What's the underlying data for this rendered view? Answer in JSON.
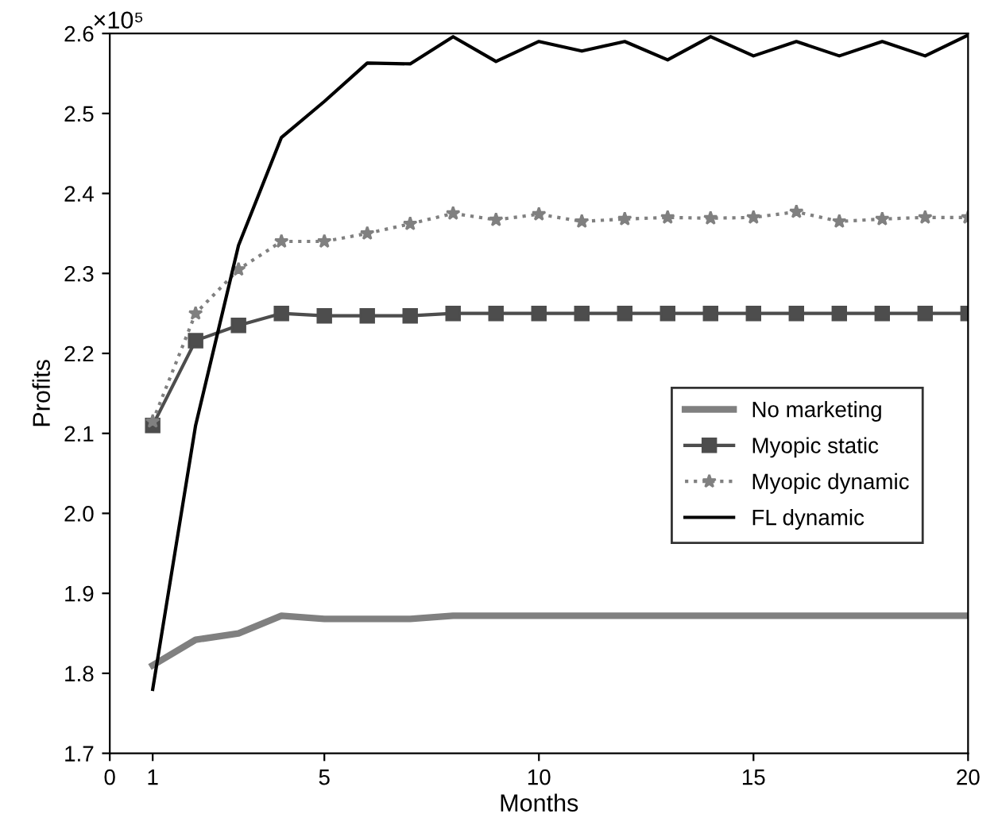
{
  "chart_data": {
    "type": "line",
    "xlabel": "Months",
    "ylabel": "Profits",
    "annotations": [
      "×10⁵"
    ],
    "x": [
      1,
      2,
      3,
      4,
      5,
      6,
      7,
      8,
      9,
      10,
      11,
      12,
      13,
      14,
      15,
      16,
      17,
      18,
      19,
      20
    ],
    "series": [
      {
        "name": "No marketing",
        "color": "#808080",
        "marker": "none",
        "line_style": "solid",
        "values": [
          1.81,
          1.842,
          1.85,
          1.872,
          1.868,
          1.868,
          1.868,
          1.872,
          1.872,
          1.872,
          1.872,
          1.872,
          1.872,
          1.872,
          1.872,
          1.872,
          1.872,
          1.872,
          1.872,
          1.872
        ]
      },
      {
        "name": "Myopic static",
        "color": "#4d4d4d",
        "marker": "square",
        "line_style": "solid",
        "values": [
          2.11,
          2.216,
          2.235,
          2.25,
          2.247,
          2.247,
          2.247,
          2.25,
          2.25,
          2.25,
          2.25,
          2.25,
          2.25,
          2.25,
          2.25,
          2.25,
          2.25,
          2.25,
          2.25,
          2.25
        ]
      },
      {
        "name": "Myopic dynamic",
        "color": "#808080",
        "marker": "star",
        "line_style": "dotted",
        "values": [
          2.115,
          2.25,
          2.305,
          2.34,
          2.34,
          2.35,
          2.362,
          2.375,
          2.367,
          2.374,
          2.365,
          2.368,
          2.37,
          2.369,
          2.37,
          2.377,
          2.365,
          2.368,
          2.37,
          2.37
        ]
      },
      {
        "name": "FL dynamic",
        "color": "#000000",
        "marker": "none",
        "line_style": "solid",
        "values": [
          1.78,
          2.11,
          2.335,
          2.47,
          2.515,
          2.563,
          2.562,
          2.596,
          2.565,
          2.59,
          2.578,
          2.59,
          2.567,
          2.596,
          2.572,
          2.59,
          2.572,
          2.59,
          2.572,
          2.598
        ]
      }
    ],
    "xlim": [
      0,
      20
    ],
    "xticks": [
      0,
      1,
      5,
      10,
      15,
      20
    ],
    "ylim": [
      1.7,
      2.6
    ],
    "yticks": [
      {
        "value": 1.7,
        "label": "1.7"
      },
      {
        "value": 1.8,
        "label": "1.8"
      },
      {
        "value": 1.9,
        "label": "1.9"
      },
      {
        "value": 2.0,
        "label": "2.0"
      },
      {
        "value": 2.1,
        "label": "2.1"
      },
      {
        "value": 2.2,
        "label": "2.2"
      },
      {
        "value": 2.3,
        "label": "2.3"
      },
      {
        "value": 2.4,
        "label": "2.4"
      },
      {
        "value": 2.5,
        "label": "2.5"
      },
      {
        "value": 2.6,
        "label": "2.6"
      }
    ],
    "grid": false,
    "legend": "right"
  }
}
